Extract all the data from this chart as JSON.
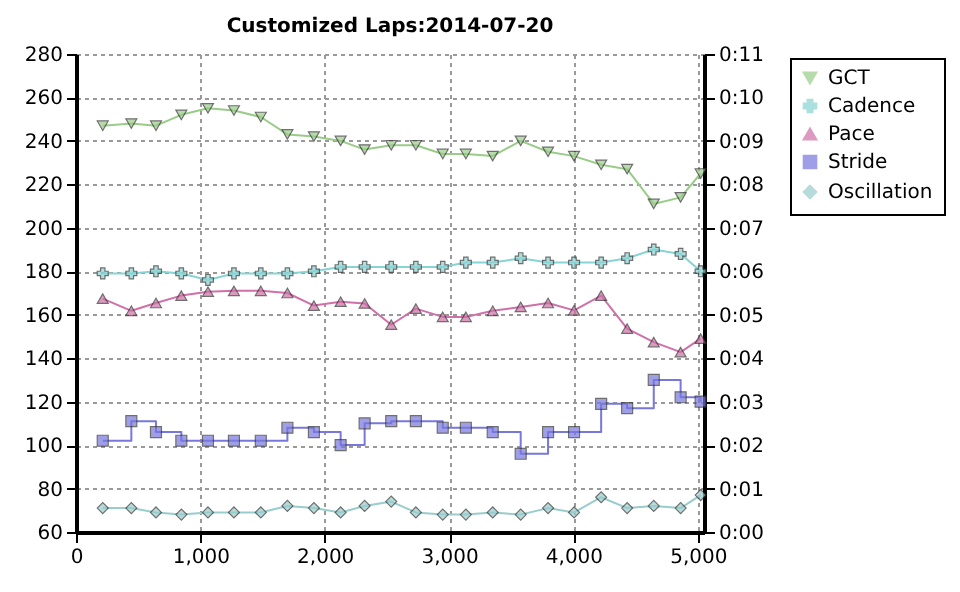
{
  "chart_data": {
    "type": "line",
    "title": "Customized Laps:2014-07-20",
    "x": [
      215,
      445,
      643,
      847,
      1061,
      1270,
      1486,
      1700,
      1913,
      2128,
      2321,
      2535,
      2733,
      2949,
      3135,
      3351,
      3576,
      3796,
      4005,
      4223,
      4432,
      4646,
      4862,
      5023
    ],
    "series": [
      {
        "name": "GCT",
        "color": "#99cc88",
        "marker": "triangle",
        "values": [
          247,
          248,
          247,
          252,
          255,
          254,
          251,
          243,
          242,
          240,
          236,
          238,
          238,
          234,
          234,
          233,
          240,
          235,
          233,
          229,
          227,
          211,
          214,
          225
        ]
      },
      {
        "name": "Cadence",
        "color": "#88d4d4",
        "marker": "cross",
        "values": [
          179,
          179,
          180,
          179,
          176,
          179,
          179,
          179,
          180,
          182,
          182,
          182,
          182,
          182,
          184,
          184,
          186,
          184,
          184,
          184,
          186,
          190,
          188,
          180
        ]
      },
      {
        "name": "Pace",
        "color": "#d070a8",
        "marker": "triangle",
        "axis": "y2",
        "values": [
          5.37,
          5.09,
          5.27,
          5.44,
          5.53,
          5.55,
          5.55,
          5.5,
          5.21,
          5.3,
          5.26,
          4.77,
          5.14,
          4.95,
          4.95,
          5.09,
          5.18,
          5.27,
          5.1,
          5.44,
          4.68,
          4.37,
          4.14,
          4.45
        ]
      },
      {
        "name": "Stride",
        "type": "step",
        "color": "#7777dd",
        "marker": "square",
        "values": [
          102,
          111,
          106,
          102,
          102,
          102,
          102,
          108,
          106,
          100,
          110,
          111,
          111,
          108,
          108,
          106,
          96,
          106,
          106,
          119,
          117,
          130,
          122,
          120
        ]
      },
      {
        "name": "Oscillation",
        "color": "#99cccc",
        "marker": "diamond",
        "values": [
          71,
          71,
          69,
          68,
          69,
          69,
          69,
          72,
          71,
          69,
          72,
          74,
          69,
          68,
          68,
          69,
          68,
          71,
          69,
          76,
          71,
          72,
          71,
          77
        ]
      }
    ],
    "xlim": [
      0,
      5050
    ],
    "xticks": [
      0,
      {
        "value": 1000,
        "label": "1,000"
      },
      {
        "value": 2000,
        "label": "2,000"
      },
      {
        "value": 3000,
        "label": "3,000"
      },
      {
        "value": 4000,
        "label": "4,000"
      },
      {
        "value": 5000,
        "label": "5,000"
      }
    ],
    "ylim": [
      60,
      280
    ],
    "yticks": [
      60,
      80,
      100,
      120,
      140,
      160,
      180,
      200,
      220,
      240,
      260,
      280
    ],
    "y2lim": [
      0,
      11
    ],
    "y2ticks": [
      {
        "value": 0,
        "label": "0:00"
      },
      {
        "value": 1,
        "label": "0:01"
      },
      {
        "value": 2,
        "label": "0:02"
      },
      {
        "value": 3,
        "label": "0:03"
      },
      {
        "value": 4,
        "label": "0:04"
      },
      {
        "value": 5,
        "label": "0:05"
      },
      {
        "value": 6,
        "label": "0:06"
      },
      {
        "value": 7,
        "label": "0:07"
      },
      {
        "value": 8,
        "label": "0:08"
      },
      {
        "value": 9,
        "label": "0:09"
      },
      {
        "value": 10,
        "label": "0:10"
      },
      {
        "value": 11,
        "label": "0:11"
      }
    ],
    "grid": true,
    "legend": "right"
  }
}
